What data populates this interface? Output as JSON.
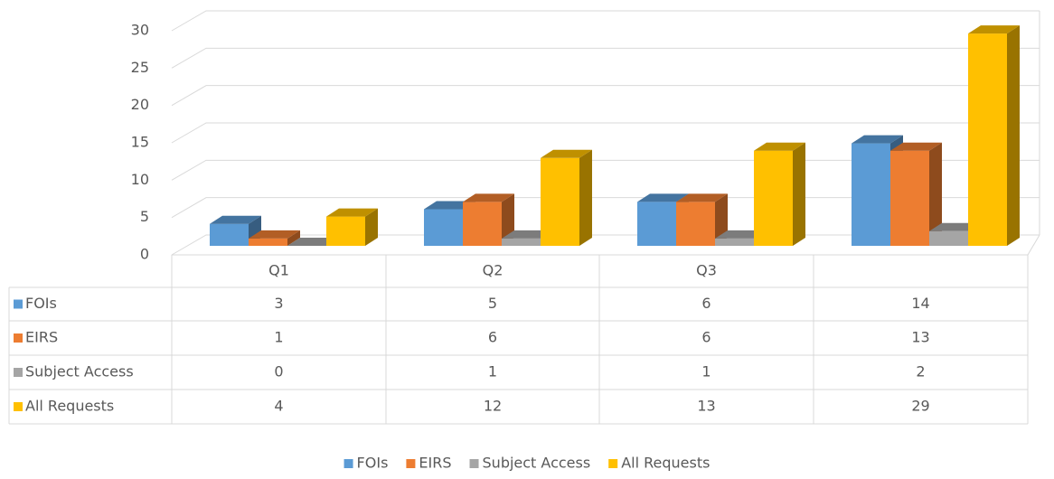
{
  "chart_data": {
    "type": "bar3d",
    "categories": [
      "Q1",
      "Q2",
      "Q3",
      null
    ],
    "series": [
      {
        "name": "FOIs",
        "color": "#5b9bd5",
        "values": [
          3,
          5,
          6,
          14
        ]
      },
      {
        "name": "EIRS",
        "color": "#ed7d31",
        "values": [
          1,
          6,
          6,
          13
        ]
      },
      {
        "name": "Subject Access",
        "color": "#a5a5a5",
        "values": [
          0,
          1,
          1,
          2
        ]
      },
      {
        "name": "All Requests",
        "color": "#ffc000",
        "values": [
          4,
          12,
          13,
          29
        ]
      }
    ],
    "ylim": [
      0,
      30
    ],
    "yticks": [
      0,
      5,
      10,
      15,
      20,
      25,
      30
    ],
    "grid": true,
    "data_table": true,
    "legend": "bottom"
  }
}
